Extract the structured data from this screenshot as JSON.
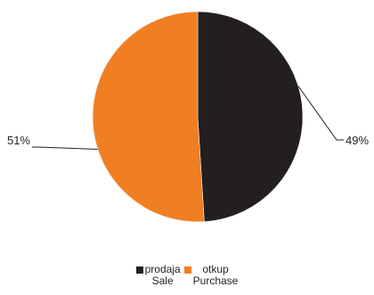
{
  "chart_data": {
    "type": "pie",
    "slices": [
      {
        "name": "prodaja",
        "name_en": "Sale",
        "value": 49,
        "label": "49%",
        "color": "#231f20"
      },
      {
        "name": "otkup",
        "name_en": "Purchase",
        "value": 51,
        "label": "51%",
        "color": "#f07f24"
      }
    ],
    "legend_placement": "bottom"
  }
}
